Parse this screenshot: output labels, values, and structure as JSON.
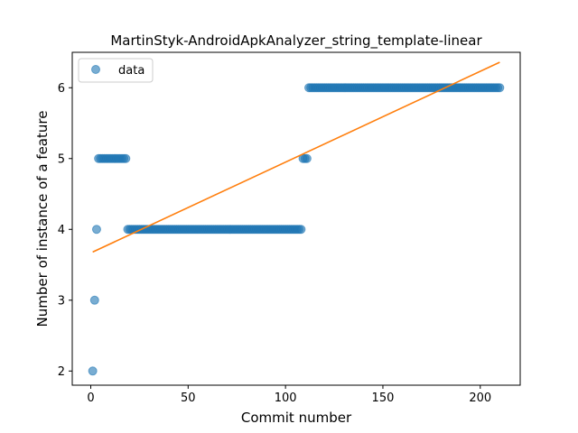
{
  "chart_data": {
    "type": "scatter",
    "title": "MartinStyk-AndroidApkAnalyzer_string_template-linear",
    "xlabel": "Commit number",
    "ylabel": "Number of instance of a feature",
    "xlim": [
      -9.5,
      220.5
    ],
    "ylim": [
      1.8,
      6.5
    ],
    "xticks": [
      0,
      50,
      100,
      150,
      200
    ],
    "yticks": [
      2,
      3,
      4,
      5,
      6
    ],
    "grid": false,
    "legend": {
      "position": "top-left",
      "entries": [
        "data"
      ]
    },
    "colors": {
      "data": "#1f77b4",
      "fit": "#ff7f0e"
    },
    "series": [
      {
        "name": "data",
        "kind": "scatter",
        "segments": [
          {
            "x_start": 1,
            "x_end": 1,
            "y": 2
          },
          {
            "x_start": 2,
            "x_end": 2,
            "y": 3
          },
          {
            "x_start": 3,
            "x_end": 3,
            "y": 4
          },
          {
            "x_start": 4,
            "x_end": 18,
            "y": 5
          },
          {
            "x_start": 19,
            "x_end": 108,
            "y": 4
          },
          {
            "x_start": 109,
            "x_end": 111,
            "y": 5
          },
          {
            "x_start": 112,
            "x_end": 210,
            "y": 6
          }
        ]
      },
      {
        "kind": "line",
        "x": [
          1,
          210
        ],
        "y": [
          3.68,
          6.36
        ]
      }
    ]
  }
}
